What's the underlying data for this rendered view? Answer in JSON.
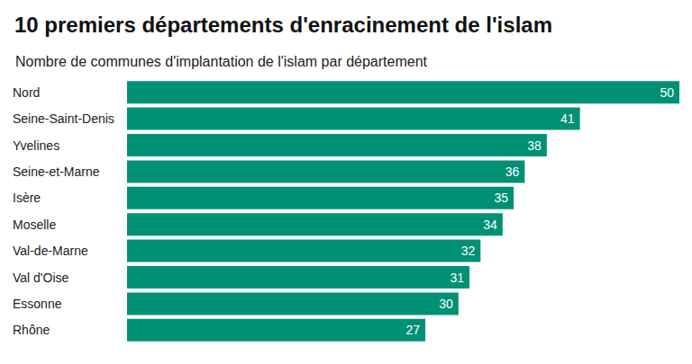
{
  "chart_data": {
    "type": "bar",
    "title": "10 premiers départements d'enracinement de l'islam",
    "subtitle": "Nombre de communes d'implantation de l'islam par département",
    "orientation": "horizontal",
    "categories": [
      "Nord",
      "Seine-Saint-Denis",
      "Yvelines",
      "Seine-et-Marne",
      "Isère",
      "Moselle",
      "Val-de-Marne",
      "Val d'Oise",
      "Essonne",
      "Rhône"
    ],
    "values": [
      50,
      41,
      38,
      36,
      35,
      34,
      32,
      31,
      30,
      27
    ],
    "color": "#009175",
    "xlim": [
      0,
      50
    ],
    "grid": false,
    "data_labels": true,
    "tick_labels": "y"
  }
}
